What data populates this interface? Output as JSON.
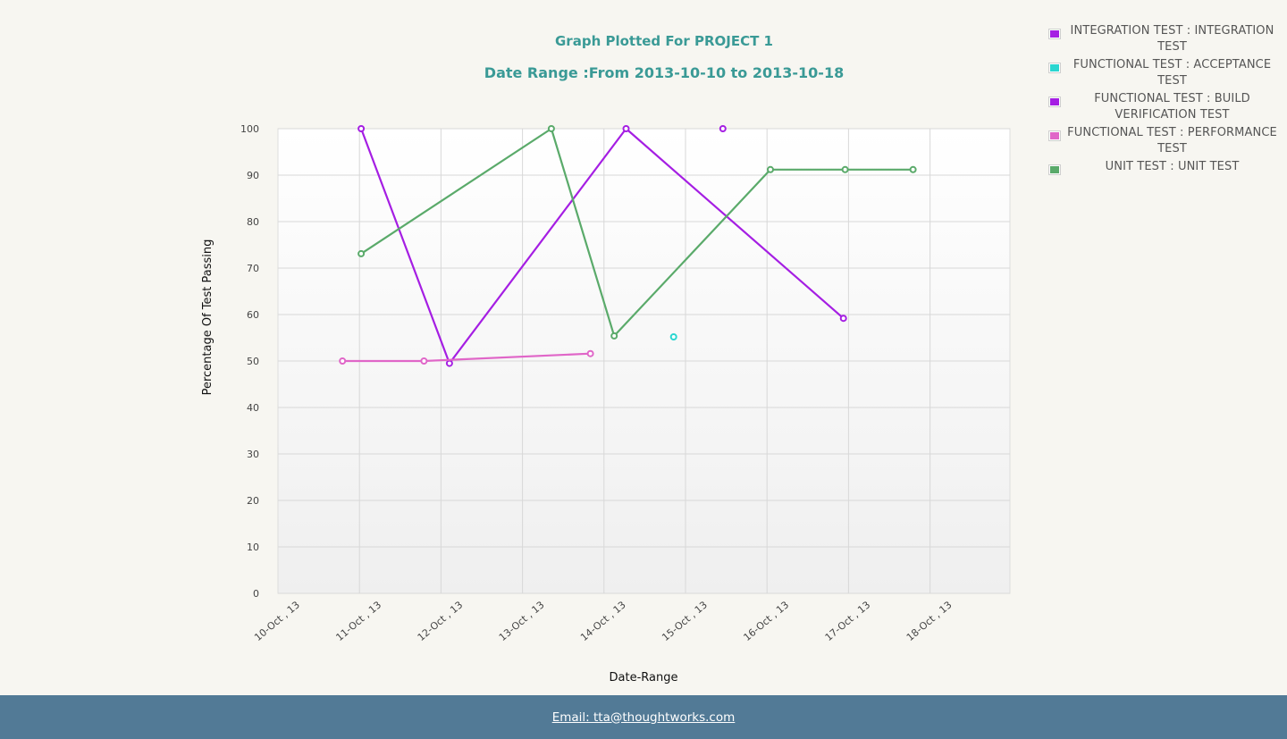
{
  "chart_data": {
    "type": "line",
    "title": "Graph Plotted For PROJECT 1",
    "subtitle": "Date Range :From 2013-10-10 to 2013-10-18",
    "xlabel": "Date-Range",
    "ylabel": "Percentage Of Test Passing",
    "ylim": [
      0,
      100
    ],
    "yticks": [
      "0",
      "10",
      "20",
      "30",
      "40",
      "50",
      "60",
      "70",
      "80",
      "90",
      "100"
    ],
    "xlim": [
      "2013-10-10",
      "2013-10-19"
    ],
    "categories": [
      "10-Oct , 13",
      "11-Oct , 13",
      "12-Oct , 13",
      "13-Oct , 13",
      "14-Oct , 13",
      "15-Oct , 13",
      "16-Oct , 13",
      "17-Oct , 13",
      "18-Oct , 13"
    ],
    "grid": true,
    "legend_position": "top-right",
    "series": [
      {
        "name": "INTEGRATION TEST : INTEGRATION TEST",
        "color": "#a51ee3",
        "points": [
          {
            "x": "2013-10-11 00:30",
            "y": 100
          },
          {
            "x": "2013-10-12 02:30",
            "y": 49.5
          },
          {
            "x": "2013-10-14 06:30",
            "y": 100
          },
          {
            "x": "2013-10-16 22:30",
            "y": 59.2
          }
        ]
      },
      {
        "name": "FUNCTIONAL TEST : ACCEPTANCE TEST",
        "color": "#2ad6d0",
        "points": [
          {
            "x": "2013-10-14 20:30",
            "y": 55.2
          }
        ]
      },
      {
        "name": "FUNCTIONAL TEST : BUILD VERIFICATION TEST",
        "color": "#a51ee3",
        "points": [
          {
            "x": "2013-10-15 11:00",
            "y": 100
          }
        ]
      },
      {
        "name": "FUNCTIONAL TEST : PERFORMANCE TEST",
        "color": "#e066c8",
        "points": [
          {
            "x": "2013-10-10 19:00",
            "y": 50
          },
          {
            "x": "2013-10-11 19:00",
            "y": 50
          },
          {
            "x": "2013-10-13 20:00",
            "y": 51.6
          }
        ]
      },
      {
        "name": "UNIT TEST : UNIT TEST",
        "color": "#5aaa6a",
        "points": [
          {
            "x": "2013-10-11 00:30",
            "y": 73.1
          },
          {
            "x": "2013-10-13 08:30",
            "y": 100
          },
          {
            "x": "2013-10-14 03:00",
            "y": 55.4
          },
          {
            "x": "2013-10-16 01:00",
            "y": 91.2
          },
          {
            "x": "2013-10-16 23:00",
            "y": 91.2
          },
          {
            "x": "2013-10-17 19:00",
            "y": 91.2
          }
        ]
      }
    ]
  },
  "legend": {
    "items": [
      {
        "label": "INTEGRATION TEST : INTEGRATION TEST",
        "color": "#a51ee3"
      },
      {
        "label": "FUNCTIONAL TEST : ACCEPTANCE TEST",
        "color": "#2ad6d0"
      },
      {
        "label": "FUNCTIONAL TEST : BUILD VERIFICATION TEST",
        "color": "#a51ee3"
      },
      {
        "label": "FUNCTIONAL TEST : PERFORMANCE TEST",
        "color": "#e066c8"
      },
      {
        "label": "UNIT TEST : UNIT TEST",
        "color": "#5aaa6a"
      }
    ]
  },
  "footer": {
    "email_link": "Email: tta@thoughtworks.com"
  }
}
